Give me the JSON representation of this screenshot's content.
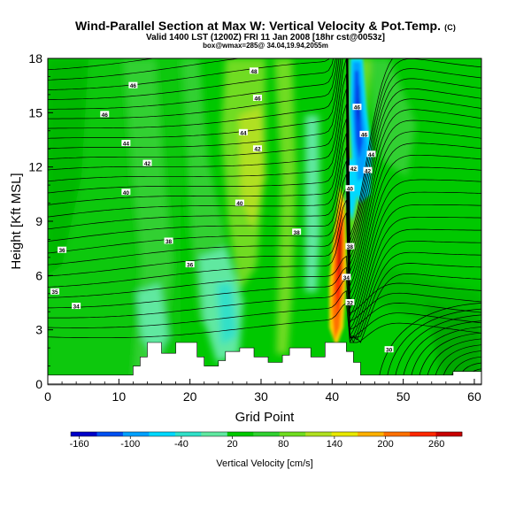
{
  "header": {
    "title": "Wind-Parallel Section at Max W: Vertical Velocity & Pot.Temp.",
    "title_mark": "(C)",
    "subtitle": "Valid 1400 LST (1200Z) FRI 11 Jan 2008 [18hr cst@0053z]",
    "subtitle2": "box@wmax=285@ 34.04,19.94,2055m"
  },
  "chart_data": {
    "type": "heatmap",
    "xlabel": "Grid Point",
    "ylabel": "Height [Kft MSL]",
    "xlim": [
      0,
      61
    ],
    "ylim": [
      0,
      18
    ],
    "x_ticks": [
      "0",
      "10",
      "20",
      "30",
      "40",
      "50",
      "60"
    ],
    "y_ticks": [
      "0",
      "3",
      "6",
      "9",
      "12",
      "15",
      "18"
    ],
    "colorbar": {
      "label": "Vertical Velocity [cm/s]",
      "tick_labels": [
        "-160",
        "-100",
        "-40",
        "20",
        "80",
        "140",
        "200",
        "260"
      ],
      "tick_values": [
        -160,
        -100,
        -40,
        20,
        80,
        140,
        200,
        260
      ],
      "range": [
        -170,
        290
      ],
      "colors": [
        "#0000c8",
        "#0050f0",
        "#00a0ff",
        "#00d8ff",
        "#30e0c8",
        "#60e8a0",
        "#00c800",
        "#30d030",
        "#70dc20",
        "#b0e020",
        "#e8e800",
        "#ffb000",
        "#ff7000",
        "#ff2800",
        "#c80000"
      ]
    },
    "terrain_top": [
      [
        0,
        0.5
      ],
      [
        12,
        0.5
      ],
      [
        12,
        1.0
      ],
      [
        13,
        1.0
      ],
      [
        13,
        1.5
      ],
      [
        14,
        1.5
      ],
      [
        14,
        2.3
      ],
      [
        16,
        2.3
      ],
      [
        16,
        1.7
      ],
      [
        18,
        1.7
      ],
      [
        18,
        2.3
      ],
      [
        21,
        2.3
      ],
      [
        21,
        1.5
      ],
      [
        22,
        1.5
      ],
      [
        22,
        1.0
      ],
      [
        24,
        1.0
      ],
      [
        24,
        1.3
      ],
      [
        25,
        1.3
      ],
      [
        25,
        1.8
      ],
      [
        27,
        1.8
      ],
      [
        27,
        2.0
      ],
      [
        29,
        2.0
      ],
      [
        29,
        1.5
      ],
      [
        31,
        1.5
      ],
      [
        31,
        1.2
      ],
      [
        33,
        1.2
      ],
      [
        33,
        1.6
      ],
      [
        34,
        1.6
      ],
      [
        34,
        2.0
      ],
      [
        37,
        2.0
      ],
      [
        37,
        1.5
      ],
      [
        39,
        1.5
      ],
      [
        39,
        2.3
      ],
      [
        42,
        2.3
      ],
      [
        42,
        1.8
      ],
      [
        43,
        1.8
      ],
      [
        43,
        1.2
      ],
      [
        44,
        1.2
      ],
      [
        44,
        0.5
      ],
      [
        57,
        0.5
      ],
      [
        57,
        0.7
      ],
      [
        61,
        0.7
      ]
    ],
    "theta_labels": [
      {
        "x": 12,
        "y": 16.5,
        "text": "46"
      },
      {
        "x": 29,
        "y": 17.3,
        "text": "48"
      },
      {
        "x": 8,
        "y": 14.9,
        "text": "46"
      },
      {
        "x": 29.5,
        "y": 15.8,
        "text": "46"
      },
      {
        "x": 11,
        "y": 13.3,
        "text": "44"
      },
      {
        "x": 27.5,
        "y": 13.9,
        "text": "44"
      },
      {
        "x": 29.5,
        "y": 13.0,
        "text": "42"
      },
      {
        "x": 14,
        "y": 12.2,
        "text": "42"
      },
      {
        "x": 11,
        "y": 10.6,
        "text": "40"
      },
      {
        "x": 27,
        "y": 10.0,
        "text": "40"
      },
      {
        "x": 17,
        "y": 7.9,
        "text": "38"
      },
      {
        "x": 35,
        "y": 8.4,
        "text": "38"
      },
      {
        "x": 2,
        "y": 7.4,
        "text": "36"
      },
      {
        "x": 20,
        "y": 6.6,
        "text": "36"
      },
      {
        "x": 1,
        "y": 5.1,
        "text": "35"
      },
      {
        "x": 4,
        "y": 4.3,
        "text": "34"
      },
      {
        "x": 43.5,
        "y": 15.3,
        "text": "46"
      },
      {
        "x": 44.5,
        "y": 13.8,
        "text": "46"
      },
      {
        "x": 45.5,
        "y": 12.7,
        "text": "44"
      },
      {
        "x": 45,
        "y": 11.8,
        "text": "42"
      },
      {
        "x": 43,
        "y": 11.9,
        "text": "42"
      },
      {
        "x": 42.5,
        "y": 10.8,
        "text": "40"
      },
      {
        "x": 42.5,
        "y": 7.6,
        "text": "38"
      },
      {
        "x": 42,
        "y": 5.9,
        "text": "34"
      },
      {
        "x": 42.5,
        "y": 4.5,
        "text": "32"
      },
      {
        "x": 48,
        "y": 1.9,
        "text": "30"
      }
    ]
  }
}
